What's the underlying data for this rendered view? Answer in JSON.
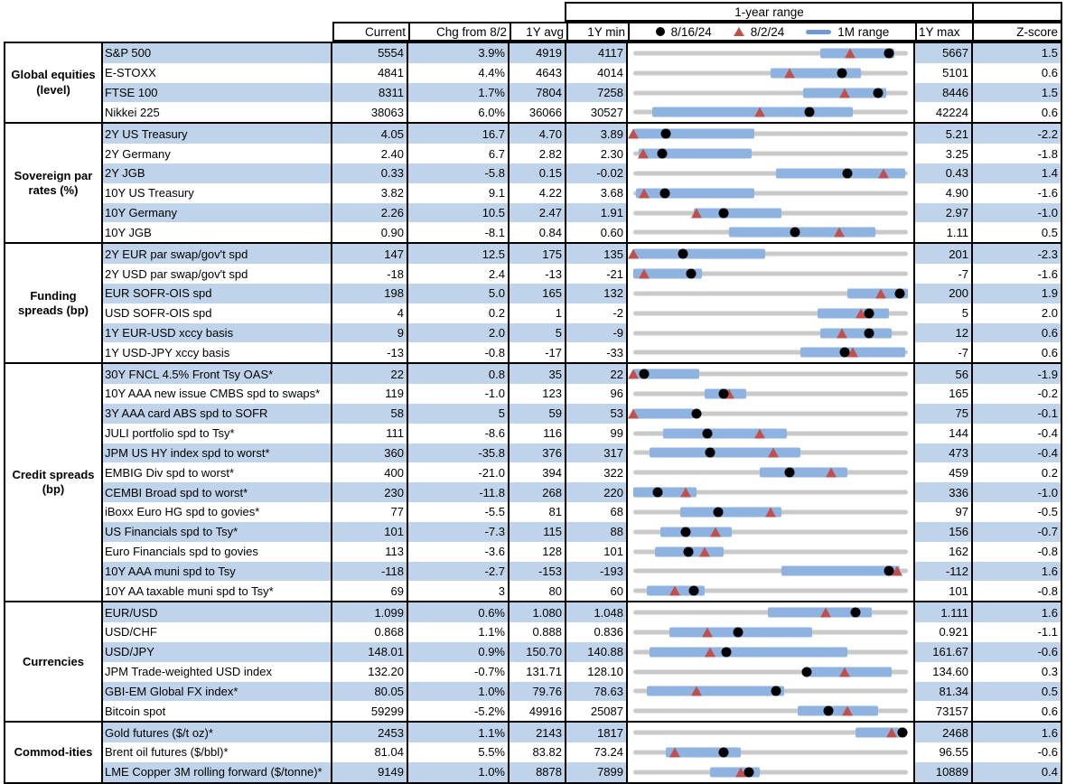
{
  "header": {
    "range_title": "1-year range",
    "col_current": "Current",
    "col_chg": "Chg from 8/2",
    "col_1y_avg": "1Y avg",
    "col_1y_min": "1Y min",
    "col_1y_max": "1Y max",
    "col_zscore": "Z-score",
    "legend": {
      "dot_label": "8/16/24",
      "tri_label": "8/2/24",
      "bar_label": "1M range"
    }
  },
  "colors": {
    "stripe_blue": "#bfd3ea",
    "range_bar_blue": "#8fb3e0",
    "track_gray": "#c9c9c9",
    "triangle_red": "#c0504d",
    "dot_black": "#000000",
    "border_black": "#000000"
  },
  "chart_data": {
    "type": "table",
    "title": "1-year range market monitor",
    "legend_entries": [
      "8/16/24 (black dot)",
      "8/2/24 (red triangle)",
      "1M range (blue bar)"
    ],
    "columns": [
      "Current",
      "Chg from 8/2",
      "1Y avg",
      "1Y min",
      "1-year range",
      "1Y max",
      "Z-score"
    ],
    "range_axis": "each row scaled from 1Y min (0) to 1Y max (1); bar = 1M range, dot = 8/16/24, tri = 8/2/24",
    "sections": [
      {
        "category": "Global equities (level)",
        "rows": [
          {
            "label": "S&P 500",
            "current": "5554",
            "chg": "3.9%",
            "avg": "4919",
            "min": "4117",
            "max": "5667",
            "z": "1.5",
            "bar": [
              0.68,
              0.95
            ],
            "dot": 0.93,
            "tri": 0.79
          },
          {
            "label": "E-STOXX",
            "current": "4841",
            "chg": "4.4%",
            "avg": "4643",
            "min": "4014",
            "max": "5101",
            "z": "0.6",
            "bar": [
              0.5,
              0.83
            ],
            "dot": 0.76,
            "tri": 0.57
          },
          {
            "label": "FTSE 100",
            "current": "8311",
            "chg": "1.7%",
            "avg": "7804",
            "min": "7258",
            "max": "8446",
            "z": "1.5",
            "bar": [
              0.62,
              0.92
            ],
            "dot": 0.89,
            "tri": 0.77
          },
          {
            "label": "Nikkei 225",
            "current": "38063",
            "chg": "6.0%",
            "avg": "36066",
            "min": "30527",
            "max": "42224",
            "z": "0.6",
            "bar": [
              0.07,
              0.8
            ],
            "dot": 0.64,
            "tri": 0.46
          }
        ]
      },
      {
        "category": "Sovereign par rates (%)",
        "rows": [
          {
            "label": "2Y US Treasury",
            "current": "4.05",
            "chg": "16.7",
            "avg": "4.70",
            "min": "3.89",
            "max": "5.21",
            "z": "-2.2",
            "bar": [
              0.0,
              0.44
            ],
            "dot": 0.12,
            "tri": 0.0
          },
          {
            "label": "2Y Germany",
            "current": "2.40",
            "chg": "6.7",
            "avg": "2.82",
            "min": "2.30",
            "max": "3.25",
            "z": "-1.8",
            "bar": [
              0.02,
              0.43
            ],
            "dot": 0.105,
            "tri": 0.035
          },
          {
            "label": "2Y JGB",
            "current": "0.33",
            "chg": "-5.8",
            "avg": "0.15",
            "min": "-0.02",
            "max": "0.43",
            "z": "1.4",
            "bar": [
              0.52,
              0.99
            ],
            "dot": 0.78,
            "tri": 0.91
          },
          {
            "label": "10Y US Treasury",
            "current": "3.82",
            "chg": "9.1",
            "avg": "4.22",
            "min": "3.68",
            "max": "4.90",
            "z": "-1.6",
            "bar": [
              0.01,
              0.44
            ],
            "dot": 0.115,
            "tri": 0.04
          },
          {
            "label": "10Y Germany",
            "current": "2.26",
            "chg": "10.5",
            "avg": "2.47",
            "min": "1.91",
            "max": "2.97",
            "z": "-1.0",
            "bar": [
              0.22,
              0.54
            ],
            "dot": 0.33,
            "tri": 0.23
          },
          {
            "label": "10Y JGB",
            "current": "0.90",
            "chg": "-8.1",
            "avg": "0.84",
            "min": "0.60",
            "max": "1.11",
            "z": "0.5",
            "bar": [
              0.35,
              0.88
            ],
            "dot": 0.59,
            "tri": 0.75
          }
        ]
      },
      {
        "category": "Funding spreads (bp)",
        "rows": [
          {
            "label": "2Y EUR par swap/gov't spd",
            "current": "147",
            "chg": "12.5",
            "avg": "175",
            "min": "135",
            "max": "201",
            "z": "-2.3",
            "bar": [
              0.0,
              0.48
            ],
            "dot": 0.18,
            "tri": 0.0
          },
          {
            "label": "2Y USD par swap/gov't spd",
            "current": "-18",
            "chg": "2.4",
            "avg": "-13",
            "min": "-21",
            "max": "-7",
            "z": "-1.6",
            "bar": [
              0.0,
              0.25
            ],
            "dot": 0.21,
            "tri": 0.04
          },
          {
            "label": "EUR SOFR-OIS spd",
            "current": "198",
            "chg": "5.0",
            "avg": "165",
            "min": "132",
            "max": "200",
            "z": "1.9",
            "bar": [
              0.78,
              1.0
            ],
            "dot": 0.97,
            "tri": 0.9
          },
          {
            "label": "USD SOFR-OIS spd",
            "current": "4",
            "chg": "0.2",
            "avg": "1",
            "min": "-2",
            "max": "5",
            "z": "2.0",
            "bar": [
              0.67,
              0.93
            ],
            "dot": 0.86,
            "tri": 0.83
          },
          {
            "label": "1Y EUR-USD xccy basis",
            "current": "9",
            "chg": "2.0",
            "avg": "5",
            "min": "-9",
            "max": "12",
            "z": "0.6",
            "bar": [
              0.68,
              0.94
            ],
            "dot": 0.86,
            "tri": 0.76
          },
          {
            "label": "1Y USD-JPY xccy basis",
            "current": "-13",
            "chg": "-0.8",
            "avg": "-17",
            "min": "-33",
            "max": "-7",
            "z": "0.6",
            "bar": [
              0.61,
              0.99
            ],
            "dot": 0.77,
            "tri": 0.8
          }
        ]
      },
      {
        "category": "Credit spreads (bp)",
        "rows": [
          {
            "label": "30Y FNCL 4.5% Front Tsy OAS*",
            "current": "22",
            "chg": "0.8",
            "avg": "35",
            "min": "22",
            "max": "56",
            "z": "-1.9",
            "bar": [
              0.0,
              0.24
            ],
            "dot": 0.04,
            "tri": 0.0
          },
          {
            "label": "10Y AAA new issue CMBS spd to swaps*",
            "current": "119",
            "chg": "-1.0",
            "avg": "123",
            "min": "96",
            "max": "165",
            "z": "-0.2",
            "bar": [
              0.26,
              0.41
            ],
            "dot": 0.33,
            "tri": 0.35
          },
          {
            "label": "3Y AAA card ABS spd to SOFR",
            "current": "58",
            "chg": "5",
            "avg": "59",
            "min": "53",
            "max": "75",
            "z": "-0.1",
            "bar": [
              0.0,
              0.22
            ],
            "dot": 0.23,
            "tri": 0.0
          },
          {
            "label": "JULI portfolio spd to Tsy*",
            "current": "111",
            "chg": "-8.6",
            "avg": "116",
            "min": "99",
            "max": "144",
            "z": "-0.4",
            "bar": [
              0.11,
              0.56
            ],
            "dot": 0.27,
            "tri": 0.46
          },
          {
            "label": "JPM US HY index spd to worst*",
            "current": "360",
            "chg": "-35.8",
            "avg": "376",
            "min": "317",
            "max": "473",
            "z": "-0.4",
            "bar": [
              0.06,
              0.61
            ],
            "dot": 0.28,
            "tri": 0.51
          },
          {
            "label": "EMBIG Div spd to worst*",
            "current": "400",
            "chg": "-21.0",
            "avg": "394",
            "min": "322",
            "max": "459",
            "z": "0.2",
            "bar": [
              0.46,
              0.78
            ],
            "dot": 0.57,
            "tri": 0.72
          },
          {
            "label": "CEMBI Broad spd to worst*",
            "current": "230",
            "chg": "-11.8",
            "avg": "268",
            "min": "220",
            "max": "336",
            "z": "-1.0",
            "bar": [
              0.0,
              0.23
            ],
            "dot": 0.09,
            "tri": 0.19
          },
          {
            "label": "iBoxx Euro HG spd to govies*",
            "current": "77",
            "chg": "-5.5",
            "avg": "81",
            "min": "68",
            "max": "97",
            "z": "-0.5",
            "bar": [
              0.17,
              0.54
            ],
            "dot": 0.31,
            "tri": 0.5
          },
          {
            "label": "US Financials spd to Tsy*",
            "current": "101",
            "chg": "-7.3",
            "avg": "115",
            "min": "88",
            "max": "156",
            "z": "-0.7",
            "bar": [
              0.1,
              0.36
            ],
            "dot": 0.19,
            "tri": 0.3
          },
          {
            "label": "Euro Financials spd to govies",
            "current": "113",
            "chg": "-3.6",
            "avg": "128",
            "min": "101",
            "max": "162",
            "z": "-0.8",
            "bar": [
              0.08,
              0.33
            ],
            "dot": 0.2,
            "tri": 0.26
          },
          {
            "label": "10Y AAA muni spd to Tsy",
            "current": "-118",
            "chg": "-2.7",
            "avg": "-153",
            "min": "-193",
            "max": "-112",
            "z": "1.6",
            "bar": [
              0.54,
              0.97
            ],
            "dot": 0.93,
            "tri": 0.96
          },
          {
            "label": "10Y AA taxable muni spd to Tsy*",
            "current": "69",
            "chg": "3",
            "avg": "80",
            "min": "60",
            "max": "101",
            "z": "-0.8",
            "bar": [
              0.05,
              0.26
            ],
            "dot": 0.22,
            "tri": 0.15
          }
        ]
      },
      {
        "category": "Currencies",
        "rows": [
          {
            "label": "EUR/USD",
            "current": "1.099",
            "chg": "0.6%",
            "avg": "1.080",
            "min": "1.048",
            "max": "1.111",
            "z": "1.6",
            "bar": [
              0.49,
              0.87
            ],
            "dot": 0.81,
            "tri": 0.7
          },
          {
            "label": "USD/CHF",
            "current": "0.868",
            "chg": "1.1%",
            "avg": "0.888",
            "min": "0.836",
            "max": "0.921",
            "z": "-1.1",
            "bar": [
              0.13,
              0.65
            ],
            "dot": 0.38,
            "tri": 0.27
          },
          {
            "label": "USD/JPY",
            "current": "148.01",
            "chg": "0.9%",
            "avg": "150.70",
            "min": "140.88",
            "max": "161.67",
            "z": "-0.6",
            "bar": [
              0.06,
              0.78
            ],
            "dot": 0.34,
            "tri": 0.28
          },
          {
            "label": "JPM Trade-weighted USD index",
            "current": "132.20",
            "chg": "-0.7%",
            "avg": "131.71",
            "min": "128.10",
            "max": "134.60",
            "z": "0.3",
            "bar": [
              0.64,
              0.94
            ],
            "dot": 0.63,
            "tri": 0.77
          },
          {
            "label": "GBI-EM Global FX index*",
            "current": "80.05",
            "chg": "1.0%",
            "avg": "79.76",
            "min": "78.63",
            "max": "81.34",
            "z": "0.5",
            "bar": [
              0.05,
              0.55
            ],
            "dot": 0.52,
            "tri": 0.23
          },
          {
            "label": "Bitcoin spot",
            "current": "59299",
            "chg": "-5.2%",
            "avg": "49916",
            "min": "25087",
            "max": "73157",
            "z": "0.6",
            "bar": [
              0.6,
              0.89
            ],
            "dot": 0.71,
            "tri": 0.78
          }
        ]
      },
      {
        "category": "Commod-ities",
        "rows": [
          {
            "label": "Gold futures ($/t oz)*",
            "current": "2453",
            "chg": "1.1%",
            "avg": "2143",
            "min": "1817",
            "max": "2468",
            "z": "1.6",
            "bar": [
              0.81,
              0.99
            ],
            "dot": 0.98,
            "tri": 0.94
          },
          {
            "label": "Brent oil futures ($/bbl)*",
            "current": "81.04",
            "chg": "5.5%",
            "avg": "83.82",
            "min": "73.24",
            "max": "96.55",
            "z": "-0.6",
            "bar": [
              0.12,
              0.39
            ],
            "dot": 0.33,
            "tri": 0.15
          },
          {
            "label": "LME Copper 3M rolling forward ($/tonne)*",
            "current": "9149",
            "chg": "1.0%",
            "avg": "8878",
            "min": "7899",
            "max": "10889",
            "z": "0.4",
            "bar": [
              0.28,
              0.46
            ],
            "dot": 0.42,
            "tri": 0.39
          }
        ]
      }
    ]
  }
}
